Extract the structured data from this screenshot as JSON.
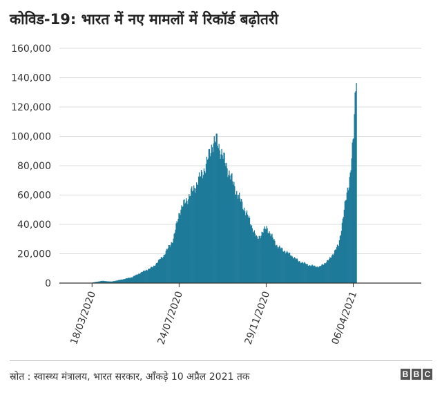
{
  "header": {
    "title": "कोविड-19: भारत में नए मामलों में रिकॉर्ड बढ़ोतरी"
  },
  "footer": {
    "source": "स्रोत : स्वास्थ्य मंत्रालय, भारत सरकार, आँकड़े 10 अप्रैल 2021 तक"
  },
  "logo": {
    "letters": [
      "B",
      "B",
      "C"
    ]
  },
  "colors": {
    "bar": "#1f7a99",
    "grid": "#dddddd",
    "axis": "#333333"
  },
  "chart_data": {
    "type": "bar",
    "title": "कोविड-19: भारत में नए मामलों में रिकॉर्ड बढ़ोतरी",
    "xlabel": "",
    "ylabel": "",
    "ylim": [
      0,
      160000
    ],
    "yticks": [
      0,
      20000,
      40000,
      60000,
      80000,
      100000,
      120000,
      140000,
      160000
    ],
    "ytick_labels": [
      "0",
      "20,000",
      "40,000",
      "60,000",
      "80,000",
      "100,000",
      "120,000",
      "140,000",
      "160,000"
    ],
    "xlim": [
      "2020-01-30",
      "2021-07-15"
    ],
    "xticks": [
      "2020-03-18",
      "2020-07-24",
      "2020-11-29",
      "2021-04-06"
    ],
    "xtick_labels": [
      "18/03/2020",
      "24/07/2020",
      "29/11/2020",
      "06/04/2021"
    ],
    "grid": "y",
    "series": [
      {
        "x": [
          "2020-01-30",
          "2020-03-01",
          "2020-03-15",
          "2020-04-01",
          "2020-04-15",
          "2020-05-01",
          "2020-05-15",
          "2020-06-01",
          "2020-06-15",
          "2020-07-01",
          "2020-07-15",
          "2020-07-24",
          "2020-08-01",
          "2020-08-15",
          "2020-09-01",
          "2020-09-10",
          "2020-09-17",
          "2020-10-01",
          "2020-10-15",
          "2020-11-01",
          "2020-11-15",
          "2020-11-29",
          "2020-12-15",
          "2021-01-01",
          "2021-01-15",
          "2021-02-01",
          "2021-02-15",
          "2021-03-01",
          "2021-03-15",
          "2021-03-25",
          "2021-04-01",
          "2021-04-06",
          "2021-04-08",
          "2021-04-10"
        ],
        "values": [
          0,
          0,
          100,
          1500,
          1000,
          2500,
          4000,
          8000,
          11000,
          19000,
          30000,
          49000,
          55000,
          65000,
          80000,
          95000,
          97000,
          80000,
          63000,
          46000,
          30000,
          38000,
          25000,
          20000,
          15000,
          12000,
          11000,
          16000,
          26000,
          55000,
          75000,
          100000,
          125000,
          145000
        ]
      }
    ]
  }
}
